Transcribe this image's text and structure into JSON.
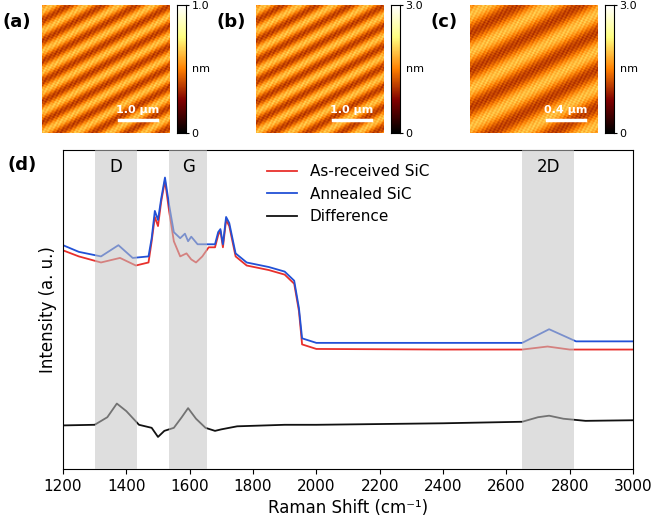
{
  "chart_data": [
    {
      "type": "image",
      "panel": "(a)",
      "scale_bar": "1.0 μm",
      "colorbar": {
        "range": [
          0,
          1
        ],
        "ticks": [
          0,
          {
            "value": 1,
            "label": "1.0"
          }
        ],
        "label": "nm"
      }
    },
    {
      "type": "image",
      "panel": "(b)",
      "scale_bar": "1.0 μm",
      "colorbar": {
        "range": [
          0,
          3
        ],
        "ticks": [
          0,
          {
            "value": 3,
            "label": "3.0"
          }
        ],
        "label": "nm"
      }
    },
    {
      "type": "image",
      "panel": "(c)",
      "scale_bar": "0.4 μm",
      "colorbar": {
        "range": [
          0,
          3
        ],
        "ticks": [
          0,
          {
            "value": 3,
            "label": "3.0"
          }
        ],
        "label": "nm"
      }
    },
    {
      "type": "line",
      "panel": "(d)",
      "x_label": "Raman Shift (cm⁻¹)",
      "y_label": "Intensity (a. u.)",
      "xlim": [
        1200,
        3000
      ],
      "xticks": [
        1200,
        1400,
        1600,
        1800,
        2000,
        2200,
        2400,
        2600,
        2800,
        3000
      ],
      "ylim": [
        0,
        105
      ],
      "yticks": [],
      "tick_labels": "x",
      "legend": "upper center",
      "bands": [
        {
          "label": "D",
          "range": [
            1300,
            1435
          ]
        },
        {
          "label": "G",
          "range": [
            1535,
            1655
          ]
        },
        {
          "label": "2D",
          "range": [
            2650,
            2815
          ]
        }
      ],
      "series": [
        {
          "name": "As-received SiC",
          "color": "#e8302c",
          "x": [
            1200,
            1250,
            1320,
            1380,
            1430,
            1470,
            1480,
            1490,
            1500,
            1510,
            1522,
            1535,
            1550,
            1570,
            1590,
            1605,
            1620,
            1640,
            1660,
            1680,
            1690,
            1697,
            1705,
            1715,
            1725,
            1745,
            1780,
            1850,
            1900,
            1930,
            1945,
            1955,
            2000,
            2400,
            2650,
            2730,
            2800,
            3000
          ],
          "values": [
            72,
            70,
            68,
            69.5,
            67,
            68,
            75,
            83,
            80,
            88,
            95,
            85,
            75,
            70,
            71,
            69,
            68,
            70,
            73,
            73,
            77,
            78.5,
            73,
            82,
            80,
            70,
            67,
            65.5,
            64,
            61,
            52,
            41,
            39.5,
            39.3,
            39.3,
            40.3,
            39.3,
            39.3
          ]
        },
        {
          "name": "Annealed SiC",
          "color": "#2251d6",
          "x": [
            1200,
            1250,
            1320,
            1375,
            1420,
            1470,
            1480,
            1490,
            1500,
            1510,
            1522,
            1535,
            1550,
            1570,
            1585,
            1595,
            1605,
            1625,
            1650,
            1680,
            1690,
            1697,
            1705,
            1715,
            1725,
            1745,
            1780,
            1850,
            1900,
            1930,
            1945,
            1955,
            2000,
            2400,
            2650,
            2735,
            2820,
            3000
          ],
          "values": [
            73.7,
            71.5,
            70,
            73.7,
            69.5,
            70,
            76,
            85,
            82,
            89,
            96,
            87,
            78,
            76,
            77.5,
            75,
            76.5,
            74,
            74,
            74,
            78,
            79,
            74,
            83,
            81,
            71,
            68,
            66.5,
            65,
            62,
            53,
            43,
            41.5,
            41.5,
            41.5,
            46,
            42,
            42
          ]
        },
        {
          "name": "Difference",
          "color": "#111111",
          "x": [
            1200,
            1300,
            1340,
            1370,
            1400,
            1440,
            1480,
            1500,
            1520,
            1550,
            1575,
            1595,
            1620,
            1650,
            1680,
            1700,
            1750,
            1900,
            2000,
            2400,
            2650,
            2700,
            2735,
            2780,
            2850,
            3000
          ],
          "values": [
            14.3,
            14.5,
            17,
            21.5,
            19,
            14.5,
            13.5,
            10.5,
            12.5,
            13.5,
            17,
            20,
            16.5,
            13.5,
            12.5,
            13,
            14,
            14.5,
            14.5,
            15,
            15.5,
            17,
            17.5,
            16.5,
            15.8,
            16
          ]
        }
      ]
    }
  ]
}
